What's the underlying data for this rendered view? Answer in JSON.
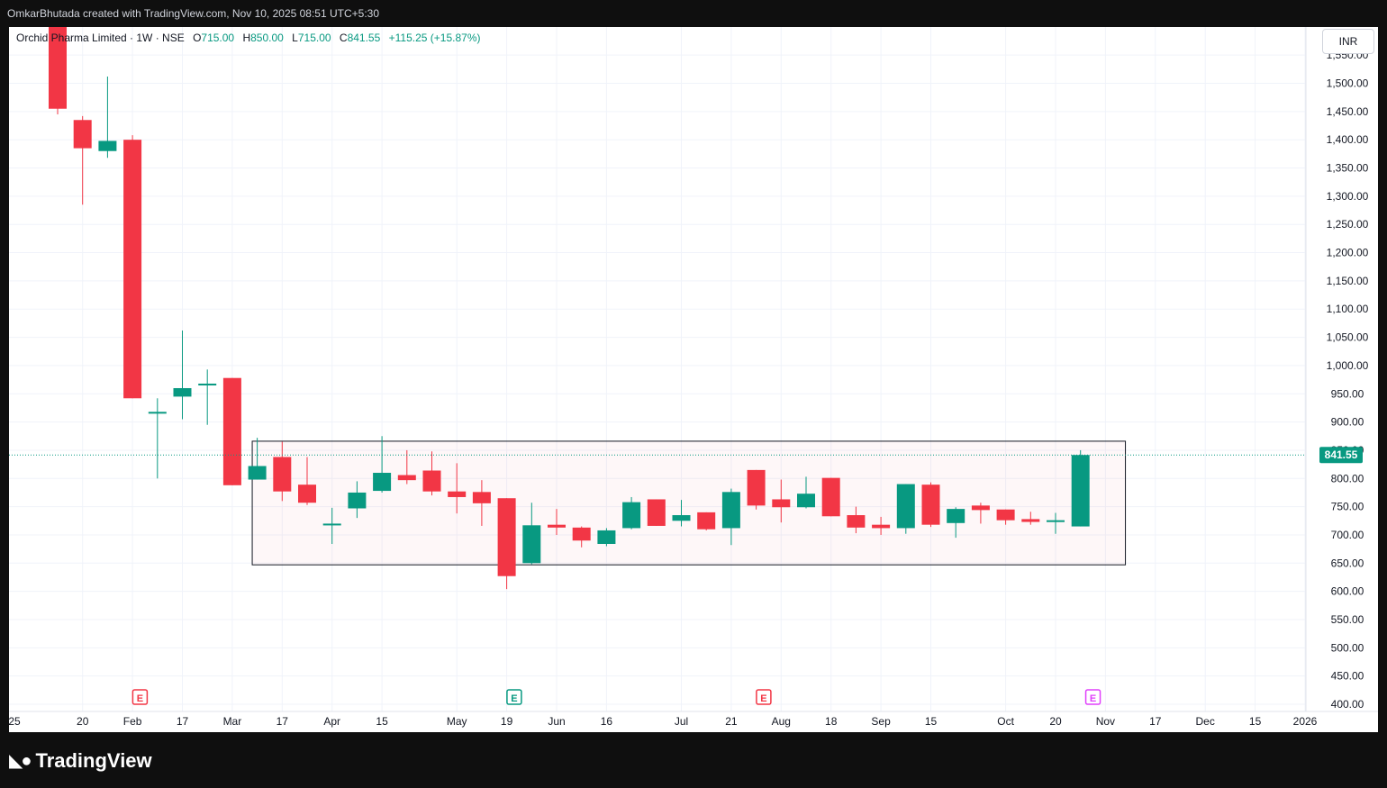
{
  "header": {
    "attribution": "OmkarBhutada created with TradingView.com, Nov 10, 2025 08:51 UTC+5:30"
  },
  "legend": {
    "symbol": "Orchid Pharma Limited · 1W · NSE",
    "o_label": "O",
    "o_value": "715.00",
    "h_label": "H",
    "h_value": "850.00",
    "l_label": "L",
    "l_value": "715.00",
    "c_label": "C",
    "c_value": "841.55",
    "change": "+115.25 (+15.87%)"
  },
  "currency": "INR",
  "footer": {
    "brand": "TradingView"
  },
  "colors": {
    "up": "#089981",
    "down": "#f23645",
    "grid": "#f0f3fa",
    "earnings_red": "#f23645",
    "earnings_green": "#089981",
    "earnings_purple": "#e040fb"
  },
  "chart_data": {
    "type": "candlestick",
    "title": "Orchid Pharma Limited · 1W · NSE",
    "ylim": [
      380,
      1580
    ],
    "y_ticks": [
      400,
      450,
      500,
      550,
      600,
      650,
      700,
      750,
      800,
      850,
      900,
      950,
      1000,
      1050,
      1100,
      1150,
      1200,
      1250,
      1300,
      1350,
      1400,
      1450,
      1500,
      1550
    ],
    "y_tick_labels": [
      "400.00",
      "450.00",
      "500.00",
      "550.00",
      "600.00",
      "650.00",
      "700.00",
      "750.00",
      "800.00",
      "850.00",
      "900.00",
      "950.00",
      "1,000.00",
      "1,050.00",
      "1,100.00",
      "1,150.00",
      "1,200.00",
      "1,250.00",
      "1,300.00",
      "1,350.00",
      "1,400.00",
      "1,450.00",
      "1,500.00",
      "1,550.00"
    ],
    "x_labels": [
      {
        "week": -1,
        "label": "25"
      },
      {
        "week": 1,
        "label": "20"
      },
      {
        "week": 3,
        "label": "Feb"
      },
      {
        "week": 5,
        "label": "17"
      },
      {
        "week": 7,
        "label": "Mar"
      },
      {
        "week": 9,
        "label": "17"
      },
      {
        "week": 11,
        "label": "Apr"
      },
      {
        "week": 13,
        "label": "15"
      },
      {
        "week": 16,
        "label": "May"
      },
      {
        "week": 18,
        "label": "19"
      },
      {
        "week": 20,
        "label": "Jun"
      },
      {
        "week": 22,
        "label": "16"
      },
      {
        "week": 25,
        "label": "Jul"
      },
      {
        "week": 27,
        "label": "21"
      },
      {
        "week": 29,
        "label": "Aug"
      },
      {
        "week": 31,
        "label": "18"
      },
      {
        "week": 33,
        "label": "Sep"
      },
      {
        "week": 35,
        "label": "15"
      },
      {
        "week": 38,
        "label": "Oct"
      },
      {
        "week": 40,
        "label": "20"
      },
      {
        "week": 42,
        "label": "Nov"
      },
      {
        "week": 44,
        "label": "17"
      },
      {
        "week": 46,
        "label": "Dec"
      },
      {
        "week": 48,
        "label": "15"
      },
      {
        "week": 50,
        "label": "2026"
      }
    ],
    "candles": [
      {
        "week": 0,
        "o": 1600,
        "h": 1640,
        "l": 1445,
        "c": 1455
      },
      {
        "week": 1,
        "o": 1435,
        "h": 1442,
        "l": 1285,
        "c": 1385
      },
      {
        "week": 2,
        "o": 1380,
        "h": 1512,
        "l": 1368,
        "c": 1398
      },
      {
        "week": 3,
        "o": 1400,
        "h": 1408,
        "l": 942,
        "c": 942
      },
      {
        "week": 4,
        "o": 915,
        "h": 942,
        "l": 800,
        "c": 918
      },
      {
        "week": 5,
        "o": 945,
        "h": 1062,
        "l": 905,
        "c": 960
      },
      {
        "week": 6,
        "o": 965,
        "h": 993,
        "l": 895,
        "c": 968
      },
      {
        "week": 7,
        "o": 978,
        "h": 978,
        "l": 788,
        "c": 788
      },
      {
        "week": 8,
        "o": 798,
        "h": 872,
        "l": 798,
        "c": 822
      },
      {
        "week": 9,
        "o": 838,
        "h": 865,
        "l": 760,
        "c": 777
      },
      {
        "week": 10,
        "o": 789,
        "h": 838,
        "l": 753,
        "c": 757
      },
      {
        "week": 11,
        "o": 720,
        "h": 748,
        "l": 684,
        "c": 720
      },
      {
        "week": 12,
        "o": 747,
        "h": 795,
        "l": 730,
        "c": 775
      },
      {
        "week": 13,
        "o": 778,
        "h": 875,
        "l": 775,
        "c": 810
      },
      {
        "week": 14,
        "o": 806,
        "h": 850,
        "l": 790,
        "c": 797
      },
      {
        "week": 15,
        "o": 814,
        "h": 848,
        "l": 770,
        "c": 777
      },
      {
        "week": 16,
        "o": 777,
        "h": 827,
        "l": 738,
        "c": 767
      },
      {
        "week": 17,
        "o": 776,
        "h": 797,
        "l": 716,
        "c": 756
      },
      {
        "week": 18,
        "o": 765,
        "h": 765,
        "l": 604,
        "c": 627
      },
      {
        "week": 19,
        "o": 650,
        "h": 757,
        "l": 648,
        "c": 717
      },
      {
        "week": 20,
        "o": 718,
        "h": 746,
        "l": 700,
        "c": 713
      },
      {
        "week": 21,
        "o": 713,
        "h": 715,
        "l": 678,
        "c": 690
      },
      {
        "week": 22,
        "o": 684,
        "h": 712,
        "l": 680,
        "c": 708
      },
      {
        "week": 23,
        "o": 712,
        "h": 767,
        "l": 710,
        "c": 758
      },
      {
        "week": 24,
        "o": 763,
        "h": 763,
        "l": 716,
        "c": 716
      },
      {
        "week": 25,
        "o": 725,
        "h": 762,
        "l": 715,
        "c": 735
      },
      {
        "week": 26,
        "o": 740,
        "h": 740,
        "l": 708,
        "c": 710
      },
      {
        "week": 27,
        "o": 712,
        "h": 782,
        "l": 682,
        "c": 776
      },
      {
        "week": 28,
        "o": 815,
        "h": 815,
        "l": 745,
        "c": 752
      },
      {
        "week": 29,
        "o": 763,
        "h": 798,
        "l": 722,
        "c": 749
      },
      {
        "week": 30,
        "o": 749,
        "h": 803,
        "l": 747,
        "c": 773
      },
      {
        "week": 31,
        "o": 801,
        "h": 801,
        "l": 733,
        "c": 733
      },
      {
        "week": 32,
        "o": 735,
        "h": 750,
        "l": 703,
        "c": 713
      },
      {
        "week": 33,
        "o": 718,
        "h": 732,
        "l": 700,
        "c": 712
      },
      {
        "week": 34,
        "o": 712,
        "h": 790,
        "l": 702,
        "c": 790
      },
      {
        "week": 35,
        "o": 789,
        "h": 793,
        "l": 714,
        "c": 718
      },
      {
        "week": 36,
        "o": 721,
        "h": 749,
        "l": 695,
        "c": 746
      },
      {
        "week": 37,
        "o": 752,
        "h": 757,
        "l": 720,
        "c": 744
      },
      {
        "week": 38,
        "o": 745,
        "h": 745,
        "l": 718,
        "c": 726
      },
      {
        "week": 39,
        "o": 728,
        "h": 741,
        "l": 718,
        "c": 723
      },
      {
        "week": 40,
        "o": 723,
        "h": 739,
        "l": 702,
        "c": 726
      },
      {
        "week": 41,
        "o": 715,
        "h": 850,
        "l": 715,
        "c": 841.55
      }
    ],
    "current_price": 841.55,
    "current_price_label": "841.55",
    "range_box": {
      "week_start": 7.8,
      "week_end": 42.8,
      "low": 647,
      "high": 866
    },
    "earnings_markers": [
      {
        "week": 3.3,
        "label": "E",
        "color": "#f23645"
      },
      {
        "week": 18.3,
        "label": "E",
        "color": "#089981"
      },
      {
        "week": 28.3,
        "label": "E",
        "color": "#f23645"
      },
      {
        "week": 41.5,
        "label": "E",
        "color": "#e040fb"
      }
    ]
  }
}
